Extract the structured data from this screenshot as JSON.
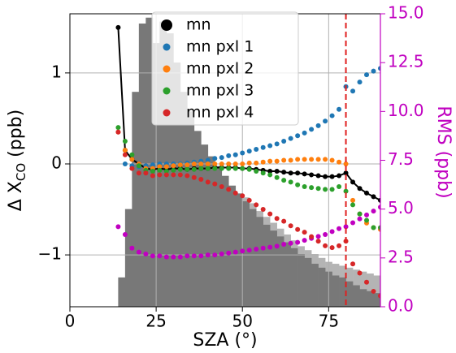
{
  "chart_data": {
    "type": "scatter",
    "xlabel": "SZA (°)",
    "ylabel_parts": [
      "Δ X",
      "CO",
      " (ppb)"
    ],
    "y2label": "RMS (ppb)",
    "xlim": [
      0,
      90
    ],
    "xticks": [
      0,
      25,
      50,
      75
    ],
    "ylim": [
      -1.57,
      1.65
    ],
    "yticks": [
      {
        "value": -1,
        "label": "−1"
      },
      0,
      1
    ],
    "y2lim": [
      0,
      15
    ],
    "y2ticks": [
      {
        "value": 0,
        "label": "0.0"
      },
      2.5,
      {
        "value": 5,
        "label": "5.0"
      },
      7.5,
      {
        "value": 10,
        "label": "10.0"
      },
      12.5,
      {
        "value": 15,
        "label": "15.0"
      }
    ],
    "y2color": "#c000c0",
    "grid": true,
    "legend": "upper center",
    "vline": 80,
    "vline_color": "#e02020",
    "bins": [
      14,
      16,
      18,
      20,
      22,
      24,
      26,
      28,
      30,
      32,
      34,
      36,
      38,
      40,
      42,
      44,
      46,
      48,
      50,
      52,
      54,
      56,
      58,
      60,
      62,
      64,
      66,
      68,
      70,
      72,
      74,
      76,
      78,
      80,
      82,
      84,
      86,
      88,
      90
    ],
    "histograms": [
      {
        "color": "#b4b4b4",
        "values": [
          1.5,
          5,
          11,
          14.5,
          14.8,
          13.5,
          14.6,
          14,
          12.5,
          11,
          10,
          9,
          8.3,
          7.7,
          7.2,
          6.7,
          6.2,
          5.8,
          5.6,
          5.3,
          4.9,
          4.6,
          4.3,
          4.0,
          3.7,
          3.4,
          3.1,
          2.9,
          2.7,
          2.5,
          2.3,
          2.2,
          2.1,
          2.0,
          1.9,
          1.8,
          1.7,
          1.6
        ]
      },
      {
        "color": "#787878",
        "values": [
          1.5,
          5,
          11,
          14.5,
          14.8,
          13.5,
          14.6,
          14,
          12.5,
          11,
          10,
          9,
          8.3,
          7.7,
          7.2,
          6.7,
          6.2,
          5.8,
          5.4,
          5.0,
          4.6,
          4.2,
          3.9,
          3.6,
          3.3,
          3.0,
          2.7,
          2.5,
          2.2,
          2.0,
          1.8,
          1.6,
          1.5,
          1.3,
          1.1,
          0.9,
          0.8,
          0.7
        ]
      }
    ],
    "x": [
      14,
      16,
      18,
      20,
      22,
      24,
      26,
      28,
      30,
      32,
      34,
      36,
      38,
      40,
      42,
      44,
      46,
      48,
      50,
      52,
      54,
      56,
      58,
      60,
      62,
      64,
      66,
      68,
      70,
      72,
      74,
      76,
      78,
      80,
      82,
      84,
      86,
      88,
      90
    ],
    "series": [
      {
        "name": "mn",
        "color": "#000000",
        "line": true,
        "values": [
          1.5,
          0.15,
          0.05,
          0.0,
          -0.05,
          -0.06,
          -0.05,
          -0.06,
          -0.05,
          -0.05,
          -0.06,
          -0.05,
          -0.05,
          -0.05,
          -0.04,
          -0.04,
          -0.04,
          -0.04,
          -0.05,
          -0.05,
          -0.06,
          -0.07,
          -0.08,
          -0.08,
          -0.09,
          -0.1,
          -0.1,
          -0.11,
          -0.12,
          -0.13,
          -0.14,
          -0.14,
          -0.13,
          -0.1,
          -0.2,
          -0.27,
          -0.32,
          -0.36,
          -0.4
        ]
      },
      {
        "name": "mn pxl 1",
        "color": "#1f77b4",
        "values": [
          null,
          0.0,
          -0.02,
          -0.03,
          -0.02,
          -0.01,
          0.0,
          0.0,
          0.0,
          0.0,
          0.01,
          0.02,
          0.03,
          0.04,
          0.06,
          0.07,
          0.09,
          0.1,
          0.12,
          0.14,
          0.16,
          0.18,
          0.2,
          0.22,
          0.25,
          0.28,
          0.31,
          0.34,
          0.38,
          0.42,
          0.47,
          0.53,
          0.6,
          0.85,
          0.8,
          0.9,
          0.98,
          1.02,
          1.05
        ]
      },
      {
        "name": "mn pxl 2",
        "color": "#ff7f0e",
        "values": [
          0.35,
          0.15,
          0.05,
          0.0,
          -0.05,
          -0.05,
          -0.03,
          -0.03,
          -0.02,
          -0.01,
          -0.01,
          0.0,
          0.0,
          0.0,
          0.0,
          0.0,
          0.0,
          0.0,
          0.0,
          0.01,
          0.01,
          0.02,
          0.03,
          0.03,
          0.04,
          0.04,
          0.05,
          0.05,
          0.05,
          0.05,
          0.05,
          0.04,
          0.02,
          0.0,
          -0.4,
          -0.55,
          -0.65,
          -0.7,
          -0.72
        ]
      },
      {
        "name": "mn pxl 3",
        "color": "#2ca02c",
        "values": [
          0.4,
          0.25,
          0.1,
          -0.02,
          -0.07,
          -0.08,
          -0.07,
          -0.08,
          -0.07,
          -0.06,
          -0.06,
          -0.06,
          -0.05,
          -0.05,
          -0.05,
          -0.05,
          -0.05,
          -0.05,
          -0.05,
          -0.06,
          -0.08,
          -0.1,
          -0.12,
          -0.15,
          -0.18,
          -0.2,
          -0.23,
          -0.25,
          -0.26,
          -0.27,
          -0.28,
          -0.28,
          -0.25,
          -0.3,
          -0.45,
          -0.55,
          -0.62,
          -0.7,
          -0.7
        ]
      },
      {
        "name": "mn pxl 4",
        "color": "#d62728",
        "values": [
          0.35,
          0.1,
          -0.05,
          -0.1,
          -0.1,
          -0.13,
          -0.12,
          -0.12,
          -0.12,
          -0.12,
          -0.13,
          -0.15,
          -0.17,
          -0.2,
          -0.22,
          -0.25,
          -0.28,
          -0.32,
          -0.35,
          -0.4,
          -0.45,
          -0.5,
          -0.55,
          -0.6,
          -0.63,
          -0.68,
          -0.72,
          -0.75,
          -0.8,
          -0.85,
          -0.9,
          -0.92,
          -0.9,
          -0.85,
          -1.1,
          -1.2,
          -1.3,
          -1.4,
          -1.45
        ]
      }
    ],
    "rms": {
      "color": "#c000c0",
      "axis": "y2",
      "values": [
        4.1,
        3.7,
        3.0,
        2.8,
        2.7,
        2.6,
        2.6,
        2.55,
        2.55,
        2.55,
        2.6,
        2.6,
        2.6,
        2.65,
        2.65,
        2.7,
        2.75,
        2.8,
        2.85,
        2.9,
        2.95,
        3.0,
        3.05,
        3.1,
        3.2,
        3.25,
        3.3,
        3.4,
        3.5,
        3.6,
        3.7,
        3.85,
        4.0,
        4.1,
        4.3,
        4.5,
        4.7,
        4.9,
        5.1
      ]
    }
  }
}
